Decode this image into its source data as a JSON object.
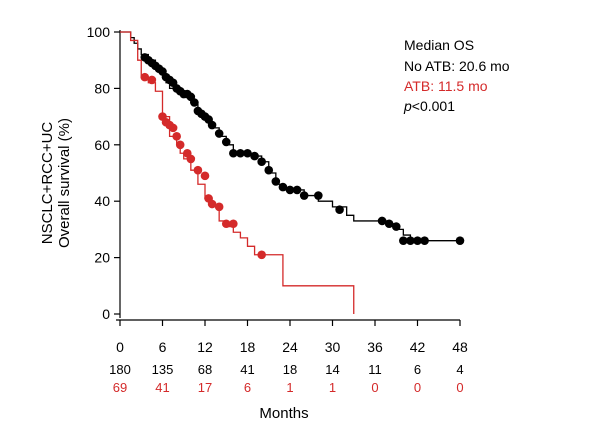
{
  "chart_data": {
    "type": "line",
    "subtype": "kaplan-meier",
    "xlabel": "Months",
    "ylabel_lines": [
      "NSCLC+RCC+UC",
      "Overall survival (%)"
    ],
    "xlim": [
      0,
      48
    ],
    "ylim": [
      0,
      100
    ],
    "xticks": [
      0,
      6,
      12,
      18,
      24,
      30,
      36,
      42,
      48
    ],
    "yticks": [
      0,
      20,
      40,
      60,
      80,
      100
    ],
    "grid": false,
    "legend": {
      "position": "top-right",
      "title": "Median OS",
      "entries": [
        {
          "label": "No ATB: 20.6 mo",
          "color": "#000000"
        },
        {
          "label": "ATB: 11.5 mo",
          "color": "#d42a2a"
        }
      ],
      "p_label": "p",
      "p_value": "<0.001"
    },
    "series": [
      {
        "name": "No ATB",
        "color": "#000000",
        "steps": [
          [
            0,
            100
          ],
          [
            1.5,
            98
          ],
          [
            2,
            96
          ],
          [
            2.5,
            94
          ],
          [
            3,
            92
          ],
          [
            4,
            90
          ],
          [
            5,
            87
          ],
          [
            6,
            84
          ],
          [
            6.5,
            82
          ],
          [
            7,
            80
          ],
          [
            8,
            79
          ],
          [
            9,
            78
          ],
          [
            10,
            75
          ],
          [
            11,
            71
          ],
          [
            12,
            69
          ],
          [
            13,
            66
          ],
          [
            14,
            63
          ],
          [
            15,
            60
          ],
          [
            16,
            57
          ],
          [
            19,
            56
          ],
          [
            20,
            54
          ],
          [
            21,
            50
          ],
          [
            22,
            46
          ],
          [
            23,
            44
          ],
          [
            25,
            44
          ],
          [
            26,
            42
          ],
          [
            28,
            40
          ],
          [
            30,
            38
          ],
          [
            32,
            35
          ],
          [
            33,
            33
          ],
          [
            36,
            33
          ],
          [
            38,
            32
          ],
          [
            39,
            30
          ],
          [
            40,
            28
          ],
          [
            41,
            26
          ],
          [
            48,
            26
          ]
        ],
        "censored": [
          [
            3.5,
            91
          ],
          [
            4,
            90
          ],
          [
            4.5,
            89
          ],
          [
            5,
            88
          ],
          [
            5.5,
            87
          ],
          [
            6,
            86
          ],
          [
            6.5,
            84
          ],
          [
            7,
            83
          ],
          [
            7.5,
            82
          ],
          [
            8,
            80
          ],
          [
            8.5,
            79
          ],
          [
            9,
            78
          ],
          [
            9.5,
            78
          ],
          [
            10,
            77
          ],
          [
            10.5,
            75
          ],
          [
            11,
            72
          ],
          [
            11.5,
            71
          ],
          [
            12,
            70
          ],
          [
            12.5,
            69
          ],
          [
            13,
            67
          ],
          [
            14,
            64
          ],
          [
            15,
            61
          ],
          [
            16,
            57
          ],
          [
            17,
            57
          ],
          [
            18,
            57
          ],
          [
            19,
            56
          ],
          [
            20,
            54
          ],
          [
            21,
            51
          ],
          [
            22,
            47
          ],
          [
            23,
            45
          ],
          [
            24,
            44
          ],
          [
            25,
            44
          ],
          [
            26,
            42
          ],
          [
            28,
            42
          ],
          [
            31,
            37
          ],
          [
            37,
            33
          ],
          [
            38,
            32
          ],
          [
            39,
            31
          ],
          [
            40,
            26
          ],
          [
            41,
            26
          ],
          [
            42,
            26
          ],
          [
            43,
            26
          ],
          [
            48,
            26
          ]
        ]
      },
      {
        "name": "ATB",
        "color": "#d42a2a",
        "steps": [
          [
            0,
            100
          ],
          [
            1.5,
            97
          ],
          [
            2.5,
            90
          ],
          [
            3,
            84
          ],
          [
            4,
            82
          ],
          [
            5,
            79
          ],
          [
            6,
            70
          ],
          [
            7,
            63
          ],
          [
            8,
            60
          ],
          [
            8.5,
            57
          ],
          [
            9,
            55
          ],
          [
            10,
            51
          ],
          [
            11,
            46
          ],
          [
            12,
            41
          ],
          [
            13,
            38
          ],
          [
            14,
            33
          ],
          [
            15,
            31
          ],
          [
            16,
            29
          ],
          [
            17,
            27
          ],
          [
            18,
            24
          ],
          [
            19,
            21
          ],
          [
            21,
            21
          ],
          [
            23,
            10
          ],
          [
            33,
            10
          ],
          [
            33,
            0
          ]
        ],
        "censored": [
          [
            3.5,
            84
          ],
          [
            4.5,
            83
          ],
          [
            6,
            70
          ],
          [
            6.5,
            68
          ],
          [
            7,
            67
          ],
          [
            7.5,
            66
          ],
          [
            8,
            63
          ],
          [
            8.5,
            60
          ],
          [
            9.5,
            57
          ],
          [
            10,
            55
          ],
          [
            11,
            51
          ],
          [
            12,
            49
          ],
          [
            12.5,
            41
          ],
          [
            13,
            39
          ],
          [
            14,
            38
          ],
          [
            15,
            32
          ],
          [
            16,
            32
          ],
          [
            20,
            21
          ]
        ]
      }
    ],
    "risk_table": {
      "times": [
        0,
        6,
        12,
        18,
        24,
        30,
        36,
        42,
        48
      ],
      "rows": [
        {
          "name": "No ATB",
          "color": "#000000",
          "counts": [
            "180",
            "135",
            "68",
            "41",
            "18",
            "14",
            "11",
            "6",
            "4"
          ]
        },
        {
          "name": "ATB",
          "color": "#d42a2a",
          "counts": [
            "69",
            "41",
            "17",
            "6",
            "1",
            "1",
            "0",
            "0",
            "0"
          ]
        }
      ]
    }
  }
}
